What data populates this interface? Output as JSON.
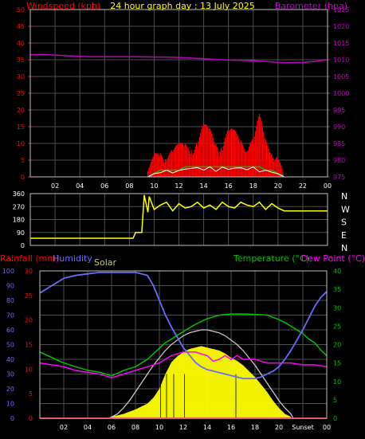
{
  "colors": {
    "background": "#000000",
    "plot_border": "#c0c0c0",
    "grid": "#505050",
    "wind": "#ff0000",
    "gust": "#ff0000",
    "avg_wind": "#00c000",
    "wind_low": "#ffffff",
    "barometer": "#c000c0",
    "direction": "#ffff00",
    "rain": "#ff0000",
    "humidity": "#6a6aff",
    "solar": "#ffff00",
    "solar_theory": "#c8c8c8",
    "temperature": "#00c000",
    "dewpoint": "#ff00ff",
    "tick_axis": "#ffffff",
    "hour_labels": "#ffffff"
  },
  "chart_data": [
    {
      "type": "line",
      "title": "24 hour graph day : 13 July 2025",
      "left_axis_label": "Windspeed (kph)",
      "right_axis_label": "Barometer (hpa)",
      "x_tick_labels": [
        "02",
        "04",
        "06",
        "08",
        "10",
        "12",
        "14",
        "16",
        "18",
        "20",
        "22",
        "00"
      ],
      "x_range_hours": [
        0,
        24
      ],
      "left_ticks": [
        "0",
        "5",
        "10",
        "15",
        "20",
        "25",
        "30",
        "35",
        "40",
        "45",
        "50"
      ],
      "left_range": [
        0,
        50
      ],
      "right_ticks": [
        "975",
        "980",
        "985",
        "990",
        "995",
        "1000",
        "1005",
        "1010",
        "1015",
        "1020",
        "1025"
      ],
      "right_range": [
        975,
        1025
      ],
      "series": [
        {
          "name": "Barometer",
          "axis": "right",
          "x": [
            0,
            1,
            2,
            3,
            4,
            5,
            6,
            7,
            8,
            9,
            10,
            11,
            12,
            13,
            14,
            15,
            16,
            17,
            18,
            19,
            20,
            21,
            22,
            23,
            24
          ],
          "y": [
            1011.5,
            1011.6,
            1011.4,
            1011.2,
            1011.0,
            1010.9,
            1010.9,
            1010.9,
            1010.9,
            1010.9,
            1010.8,
            1010.8,
            1010.7,
            1010.5,
            1010.3,
            1010.1,
            1009.9,
            1009.8,
            1009.7,
            1009.5,
            1009.2,
            1009.1,
            1009.2,
            1009.5,
            1010.0
          ]
        },
        {
          "name": "Gust",
          "axis": "left",
          "x": [
            9.5,
            10,
            10.5,
            11,
            11.5,
            12,
            12.5,
            13,
            13.5,
            14,
            14.5,
            15,
            15.5,
            16,
            16.5,
            17,
            17.5,
            18,
            18.5,
            19,
            19.5,
            20,
            20.5
          ],
          "y": [
            2,
            7,
            9,
            10,
            9,
            10,
            11,
            14,
            13,
            16,
            15,
            14,
            14,
            15,
            14,
            13,
            16,
            13,
            19,
            12,
            11,
            8,
            0
          ]
        },
        {
          "name": "Average speed",
          "axis": "left",
          "x": [
            9.5,
            10,
            10.5,
            11,
            11.5,
            12,
            12.5,
            13,
            13.5,
            14,
            14.5,
            15,
            15.5,
            16,
            16.5,
            17,
            17.5,
            18,
            18.5,
            19,
            19.5,
            20,
            20.5
          ],
          "y": [
            0,
            1,
            2,
            2,
            2,
            2,
            3,
            3,
            3,
            3,
            3,
            3,
            3,
            3,
            3,
            3,
            3,
            3,
            3,
            2,
            2,
            1,
            0
          ]
        }
      ]
    },
    {
      "type": "line",
      "title": "",
      "x_range_hours": [
        0,
        24
      ],
      "left_ticks": [
        "0",
        "90",
        "180",
        "270",
        "360"
      ],
      "left_range": [
        0,
        360
      ],
      "right_ticks": [
        "N",
        "W",
        "S",
        "E",
        "N"
      ],
      "series": [
        {
          "name": "Wind direction",
          "x": [
            0,
            1,
            2,
            3,
            4,
            5,
            6,
            7,
            8,
            8.3,
            8.5,
            9,
            9.2,
            9.5,
            9.6,
            10,
            10.5,
            11,
            11.5,
            12,
            12.5,
            13,
            13.5,
            14,
            14.5,
            15,
            15.5,
            16,
            16.5,
            17,
            17.5,
            18,
            18.5,
            19,
            19.5,
            20,
            20.5,
            21,
            22,
            23,
            24
          ],
          "y": [
            50,
            50,
            50,
            50,
            50,
            50,
            50,
            50,
            50,
            50,
            90,
            90,
            350,
            230,
            340,
            250,
            280,
            300,
            240,
            290,
            260,
            270,
            300,
            260,
            280,
            250,
            300,
            270,
            260,
            300,
            280,
            270,
            300,
            250,
            290,
            260,
            240,
            240,
            240,
            240,
            240
          ]
        }
      ]
    },
    {
      "type": "line",
      "left_axis_labels": [
        "Rainfall (mm)",
        "Humidity",
        "Solar"
      ],
      "right_axis_labels": [
        "Temperature (°C)",
        "Dew Point (°C)"
      ],
      "x_tick_labels": [
        "02",
        "04",
        "06",
        "08",
        "10",
        "12",
        "14",
        "16",
        "18",
        "20",
        "Sunset",
        "00"
      ],
      "x_range_hours": [
        0,
        24
      ],
      "humidity_ticks": [
        "0",
        "10",
        "20",
        "30",
        "40",
        "50",
        "60",
        "70",
        "80",
        "90",
        "100"
      ],
      "humidity_range": [
        0,
        100
      ],
      "rain_ticks": [
        "0",
        "5",
        "10",
        "15",
        "20",
        "25",
        "30"
      ],
      "rain_range": [
        0,
        30
      ],
      "temp_ticks": [
        "0",
        "5",
        "10",
        "15",
        "20",
        "25",
        "30",
        "35",
        "40"
      ],
      "temp_range": [
        0,
        40
      ],
      "series": [
        {
          "name": "Humidity",
          "axis": "humidity",
          "x": [
            0,
            1,
            2,
            3,
            4,
            5,
            6,
            7,
            8,
            8.5,
            9,
            9.5,
            10,
            10.5,
            11,
            11.5,
            12,
            12.5,
            13,
            13.5,
            14,
            14.5,
            15,
            15.5,
            16,
            16.5,
            17,
            17.5,
            18,
            18.5,
            19,
            19.5,
            20,
            20.5,
            21,
            21.5,
            22,
            22.5,
            23,
            23.5,
            24
          ],
          "y": [
            85,
            90,
            95,
            97,
            98,
            99,
            99,
            99,
            99,
            98,
            97,
            90,
            80,
            70,
            62,
            55,
            48,
            43,
            38,
            35,
            33,
            32,
            31,
            30,
            29,
            28,
            27,
            27,
            27,
            28,
            30,
            32,
            35,
            40,
            46,
            53,
            60,
            68,
            76,
            82,
            86
          ]
        },
        {
          "name": "Temperature",
          "axis": "temp",
          "x": [
            0,
            1,
            2,
            3,
            4,
            5,
            6,
            7,
            8,
            9,
            10,
            10.5,
            11,
            11.5,
            12,
            12.5,
            13,
            13.5,
            14,
            14.5,
            15,
            16,
            17,
            18,
            19,
            20,
            20.5,
            21,
            21.5,
            22,
            22.5,
            23,
            23.5,
            24
          ],
          "y": [
            18,
            16.5,
            15,
            14,
            13,
            12.5,
            11.5,
            13,
            14,
            16,
            19,
            20.5,
            21.5,
            22.5,
            23.5,
            24.5,
            25.5,
            26.3,
            27,
            27.5,
            28,
            28.3,
            28.3,
            28.2,
            28,
            26.8,
            26,
            25,
            24,
            23,
            21.5,
            20.5,
            18.5,
            17
          ]
        },
        {
          "name": "Dew Point",
          "axis": "temp",
          "x": [
            0,
            1,
            2,
            3,
            4,
            5,
            6,
            7,
            8,
            9,
            10,
            10.5,
            11,
            11.5,
            12,
            12.5,
            13,
            13.5,
            14,
            14.5,
            15,
            15.5,
            16,
            16.5,
            17,
            17.5,
            18,
            18.5,
            19,
            20,
            21,
            22,
            23,
            24
          ],
          "y": [
            15,
            14.5,
            14,
            13,
            12.5,
            12,
            11,
            12,
            13,
            14,
            15,
            16,
            17,
            17.5,
            18,
            18,
            18,
            17.5,
            17,
            15.5,
            16,
            17,
            16,
            17,
            16,
            16,
            16,
            15.5,
            15,
            15,
            15,
            14.5,
            14.5,
            14
          ]
        },
        {
          "name": "Solar theoretical",
          "axis": "humidity",
          "x": [
            5.8,
            6.5,
            7,
            7.5,
            8,
            8.5,
            9,
            9.5,
            10,
            10.5,
            11,
            11.5,
            12,
            12.5,
            13,
            13.5,
            14,
            14.5,
            15,
            15.5,
            16,
            16.5,
            17,
            17.5,
            18,
            18.5,
            19,
            19.5,
            20,
            20.5,
            21,
            21.2
          ],
          "y": [
            0,
            3,
            7,
            12,
            18,
            24,
            30,
            36,
            41,
            46,
            50,
            53,
            56,
            58,
            59,
            60,
            60,
            59,
            58,
            56,
            53,
            50,
            46,
            41,
            36,
            30,
            24,
            18,
            12,
            7,
            3,
            0
          ]
        },
        {
          "name": "Solar",
          "axis": "humidity",
          "x": [
            6,
            7,
            8,
            9,
            9.5,
            10,
            10.5,
            11,
            11.5,
            12,
            12.5,
            13,
            13.5,
            14,
            14.5,
            15,
            15.5,
            16,
            16.5,
            17,
            17.5,
            18,
            18.5,
            19,
            19.5,
            20,
            20.5,
            21
          ],
          "y": [
            1,
            3,
            6,
            10,
            14,
            20,
            30,
            38,
            42,
            45,
            47,
            48,
            49,
            48,
            47,
            46,
            44,
            41,
            39,
            36,
            32,
            28,
            23,
            18,
            12,
            7,
            3,
            1
          ]
        },
        {
          "name": "Rainfall",
          "axis": "rain",
          "x": [
            0,
            24
          ],
          "y": [
            0,
            0
          ]
        }
      ]
    }
  ]
}
